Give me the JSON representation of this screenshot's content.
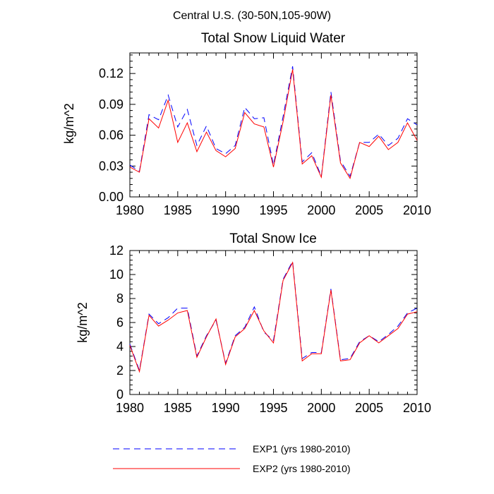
{
  "suptitle": "Central U.S. (30-50N,105-90W)",
  "legend": {
    "exp1_label": "EXP1 (yrs 1980-2010)",
    "exp2_label": "EXP2 (yrs 1980-2010)"
  },
  "colors": {
    "exp1": "#0000ff",
    "exp2": "#ff0000"
  },
  "chart_data": [
    {
      "type": "line",
      "title": "Total Snow Liquid Water",
      "xlabel": "",
      "ylabel": "kg/m^2",
      "xlim": [
        1980,
        2010
      ],
      "ylim": [
        0,
        0.14
      ],
      "x_ticks": [
        "1980",
        "1985",
        "1990",
        "1995",
        "2000",
        "2005",
        "2010"
      ],
      "y_ticks": [
        "0.00",
        "0.03",
        "0.06",
        "0.09",
        "0.12"
      ],
      "grid": false,
      "x": [
        1980,
        1981,
        1982,
        1983,
        1984,
        1985,
        1986,
        1987,
        1988,
        1989,
        1990,
        1991,
        1992,
        1993,
        1994,
        1995,
        1996,
        1997,
        1998,
        1999,
        2000,
        2001,
        2002,
        2003,
        2004,
        2005,
        2006,
        2007,
        2008,
        2009,
        2010
      ],
      "series": [
        {
          "name": "EXP1 (yrs 1980-2010)",
          "style": "dashed",
          "values": [
            0.031,
            0.025,
            0.08,
            0.075,
            0.099,
            0.068,
            0.085,
            0.05,
            0.069,
            0.047,
            0.042,
            0.05,
            0.087,
            0.076,
            0.077,
            0.031,
            0.078,
            0.127,
            0.034,
            0.043,
            0.02,
            0.102,
            0.035,
            0.02,
            0.053,
            0.053,
            0.061,
            0.05,
            0.057,
            0.076,
            0.07
          ]
        },
        {
          "name": "EXP2 (yrs 1980-2010)",
          "style": "solid",
          "values": [
            0.029,
            0.024,
            0.076,
            0.067,
            0.094,
            0.053,
            0.072,
            0.044,
            0.063,
            0.045,
            0.039,
            0.047,
            0.082,
            0.071,
            0.068,
            0.029,
            0.073,
            0.124,
            0.032,
            0.04,
            0.019,
            0.099,
            0.033,
            0.018,
            0.053,
            0.049,
            0.059,
            0.046,
            0.053,
            0.072,
            0.055
          ]
        }
      ]
    },
    {
      "type": "line",
      "title": "Total Snow Ice",
      "xlabel": "",
      "ylabel": "kg/m^2",
      "xlim": [
        1980,
        2010
      ],
      "ylim": [
        0,
        12
      ],
      "x_ticks": [
        "1980",
        "1985",
        "1990",
        "1995",
        "2000",
        "2005",
        "2010"
      ],
      "y_ticks": [
        "0",
        "2",
        "4",
        "6",
        "8",
        "10",
        "12"
      ],
      "grid": false,
      "x": [
        1980,
        1981,
        1982,
        1983,
        1984,
        1985,
        1986,
        1987,
        1988,
        1989,
        1990,
        1991,
        1992,
        1993,
        1994,
        1995,
        1996,
        1997,
        1998,
        1999,
        2000,
        2001,
        2002,
        2003,
        2004,
        2005,
        2006,
        2007,
        2008,
        2009,
        2010
      ],
      "series": [
        {
          "name": "EXP1 (yrs 1980-2010)",
          "style": "dashed",
          "values": [
            4.2,
            2.0,
            6.7,
            5.9,
            6.4,
            7.2,
            7.2,
            3.2,
            4.9,
            6.2,
            2.6,
            4.9,
            5.6,
            7.3,
            5.2,
            4.5,
            9.6,
            11.1,
            3.0,
            3.5,
            3.5,
            8.8,
            2.9,
            3.0,
            4.4,
            4.9,
            4.4,
            5.0,
            5.7,
            6.8,
            7.2
          ]
        },
        {
          "name": "EXP2 (yrs 1980-2010)",
          "style": "solid",
          "values": [
            4.1,
            1.9,
            6.6,
            5.7,
            6.2,
            6.8,
            7.0,
            3.1,
            4.8,
            6.3,
            2.5,
            4.8,
            5.5,
            7.0,
            5.3,
            4.3,
            9.5,
            11.0,
            2.8,
            3.4,
            3.4,
            8.7,
            2.8,
            2.9,
            4.3,
            4.9,
            4.3,
            4.9,
            5.5,
            6.7,
            6.9
          ]
        }
      ]
    }
  ]
}
